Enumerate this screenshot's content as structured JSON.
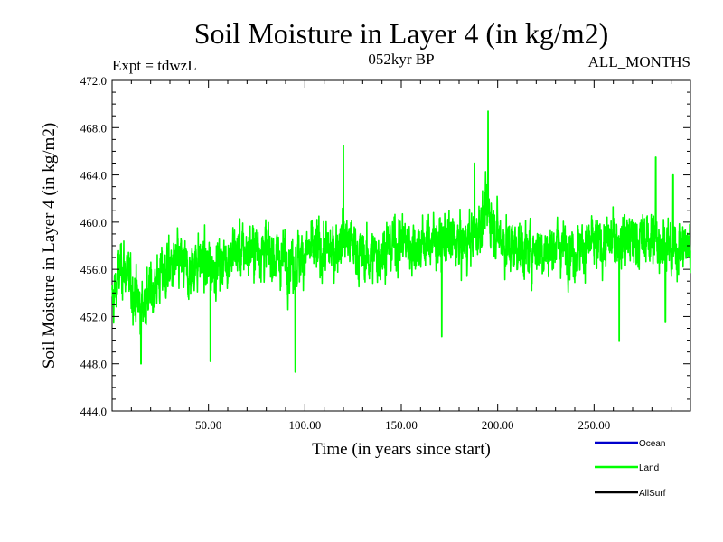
{
  "chart_data": {
    "type": "line",
    "title": "Soil Moisture in Layer 4 (in kg/m2)",
    "subtitle_left": "Expt = tdwzL",
    "subtitle_center": "052kyr BP",
    "subtitle_right": "ALL_MONTHS",
    "xlabel": "Time (in years since start)",
    "ylabel": "Soil Moisture in Layer 4 (in kg/m2)",
    "xlim": [
      0,
      300
    ],
    "ylim": [
      444.0,
      472.0
    ],
    "x_ticks": [
      50,
      100,
      150,
      200,
      250
    ],
    "x_tick_labels": [
      "50.00",
      "100.00",
      "150.00",
      "200.00",
      "250.00"
    ],
    "y_ticks": [
      444,
      448,
      452,
      456,
      460,
      464,
      468,
      472
    ],
    "y_tick_labels": [
      "444.0",
      "448.0",
      "452.0",
      "456.0",
      "460.0",
      "464.0",
      "468.0",
      "472.0"
    ],
    "legend_placement": "bottom-right, below plot",
    "series": [
      {
        "name": "Ocean",
        "color": "#0000cc",
        "x": [],
        "values": []
      },
      {
        "name": "Land",
        "color": "#00ff00",
        "x": [
          0,
          5,
          10,
          15,
          20,
          25,
          30,
          35,
          40,
          45,
          50,
          55,
          60,
          65,
          70,
          75,
          80,
          85,
          90,
          95,
          100,
          105,
          110,
          115,
          120,
          125,
          130,
          135,
          140,
          145,
          150,
          155,
          160,
          165,
          170,
          175,
          180,
          185,
          190,
          195,
          200,
          205,
          210,
          215,
          220,
          225,
          230,
          235,
          240,
          245,
          250,
          255,
          260,
          265,
          270,
          275,
          280,
          285,
          290,
          295,
          300
        ],
        "values": [
          453.0,
          456.5,
          454.5,
          453.0,
          454.0,
          455.5,
          456.0,
          456.5,
          455.5,
          457.0,
          456.0,
          456.5,
          457.0,
          457.5,
          457.5,
          458.0,
          457.5,
          457.0,
          457.0,
          456.5,
          457.5,
          457.5,
          457.5,
          457.5,
          459.0,
          458.0,
          457.0,
          457.0,
          457.5,
          458.0,
          458.5,
          458.0,
          458.0,
          458.5,
          458.0,
          458.5,
          458.0,
          458.5,
          459.5,
          461.0,
          459.0,
          458.0,
          458.0,
          457.5,
          458.0,
          457.5,
          458.0,
          458.0,
          457.5,
          458.0,
          458.0,
          458.0,
          458.5,
          458.5,
          458.5,
          458.5,
          458.5,
          458.5,
          457.5,
          458.0,
          458.0
        ],
        "spikes_max": [
          [
            195,
            469.4
          ],
          [
            120,
            466.5
          ],
          [
            188,
            465.0
          ],
          [
            282,
            465.5
          ],
          [
            291,
            464.0
          ]
        ],
        "spikes_min": [
          [
            95,
            447.3
          ],
          [
            15,
            448.0
          ],
          [
            51,
            448.2
          ],
          [
            263,
            449.9
          ],
          [
            171,
            450.3
          ],
          [
            287,
            451.5
          ]
        ]
      },
      {
        "name": "AllSurf",
        "color": "#000000",
        "x": [],
        "values": []
      }
    ]
  }
}
